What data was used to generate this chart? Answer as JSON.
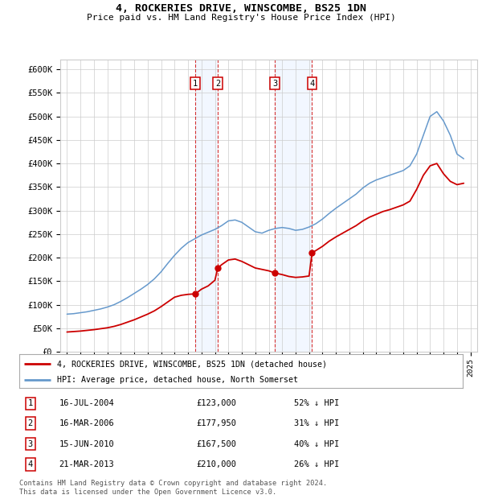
{
  "title": "4, ROCKERIES DRIVE, WINSCOMBE, BS25 1DN",
  "subtitle": "Price paid vs. HM Land Registry's House Price Index (HPI)",
  "ylim": [
    0,
    620000
  ],
  "yticks": [
    0,
    50000,
    100000,
    150000,
    200000,
    250000,
    300000,
    350000,
    400000,
    450000,
    500000,
    550000,
    600000
  ],
  "ytick_labels": [
    "£0",
    "£50K",
    "£100K",
    "£150K",
    "£200K",
    "£250K",
    "£300K",
    "£350K",
    "£400K",
    "£450K",
    "£500K",
    "£550K",
    "£600K"
  ],
  "xlim_start": 1994.5,
  "xlim_end": 2025.5,
  "transactions": [
    {
      "num": 1,
      "date": "16-JUL-2004",
      "year": 2004.54,
      "price": 123000,
      "pct": "52%",
      "label": "1"
    },
    {
      "num": 2,
      "date": "16-MAR-2006",
      "year": 2006.21,
      "price": 177950,
      "pct": "31%",
      "label": "2"
    },
    {
      "num": 3,
      "date": "15-JUN-2010",
      "year": 2010.46,
      "price": 167500,
      "pct": "40%",
      "label": "3"
    },
    {
      "num": 4,
      "date": "21-MAR-2013",
      "year": 2013.22,
      "price": 210000,
      "pct": "26%",
      "label": "4"
    }
  ],
  "legend_house": "4, ROCKERIES DRIVE, WINSCOMBE, BS25 1DN (detached house)",
  "legend_hpi": "HPI: Average price, detached house, North Somerset",
  "footer": "Contains HM Land Registry data © Crown copyright and database right 2024.\nThis data is licensed under the Open Government Licence v3.0.",
  "house_color": "#cc0000",
  "hpi_color": "#6699cc",
  "box_color": "#cc0000",
  "shade_color": "#cce0ff",
  "grid_color": "#cccccc",
  "bg_color": "#ffffff",
  "hpi_years": [
    1995,
    1995.5,
    1996,
    1996.5,
    1997,
    1997.5,
    1998,
    1998.5,
    1999,
    1999.5,
    2000,
    2000.5,
    2001,
    2001.5,
    2002,
    2002.5,
    2003,
    2003.5,
    2004,
    2004.5,
    2005,
    2005.5,
    2006,
    2006.5,
    2007,
    2007.5,
    2008,
    2008.5,
    2009,
    2009.5,
    2010,
    2010.5,
    2011,
    2011.5,
    2012,
    2012.5,
    2013,
    2013.5,
    2014,
    2014.5,
    2015,
    2015.5,
    2016,
    2016.5,
    2017,
    2017.5,
    2018,
    2018.5,
    2019,
    2019.5,
    2020,
    2020.5,
    2021,
    2021.5,
    2022,
    2022.5,
    2023,
    2023.5,
    2024,
    2024.5
  ],
  "hpi_values": [
    80000,
    81000,
    83000,
    85000,
    88000,
    91000,
    95000,
    100000,
    107000,
    115000,
    124000,
    133000,
    143000,
    155000,
    170000,
    188000,
    205000,
    220000,
    232000,
    240000,
    248000,
    254000,
    260000,
    268000,
    278000,
    280000,
    275000,
    265000,
    255000,
    252000,
    258000,
    262000,
    264000,
    262000,
    258000,
    260000,
    265000,
    272000,
    282000,
    294000,
    305000,
    315000,
    325000,
    335000,
    348000,
    358000,
    365000,
    370000,
    375000,
    380000,
    385000,
    395000,
    420000,
    460000,
    500000,
    510000,
    490000,
    460000,
    420000,
    410000
  ],
  "prop_years": [
    1995,
    1995.5,
    1996,
    1996.5,
    1997,
    1997.5,
    1998,
    1998.5,
    1999,
    1999.5,
    2000,
    2000.5,
    2001,
    2001.5,
    2002,
    2002.5,
    2003,
    2003.5,
    2004,
    2004.25,
    2004.54,
    2005,
    2005.5,
    2006,
    2006.21,
    2006.5,
    2007,
    2007.5,
    2008,
    2008.5,
    2009,
    2009.5,
    2010,
    2010.46,
    2010.5,
    2011,
    2011.5,
    2012,
    2012.5,
    2013,
    2013.22,
    2013.5,
    2014,
    2014.5,
    2015,
    2015.5,
    2016,
    2016.5,
    2017,
    2017.5,
    2018,
    2018.5,
    2019,
    2019.5,
    2020,
    2020.5,
    2021,
    2021.5,
    2022,
    2022.5,
    2023,
    2023.5,
    2024,
    2024.5
  ],
  "prop_values": [
    42000,
    43000,
    44000,
    45500,
    47000,
    49000,
    51000,
    54000,
    58000,
    63000,
    68000,
    74000,
    80000,
    87000,
    96000,
    106000,
    116000,
    120000,
    122000,
    122500,
    123000,
    133000,
    140000,
    152000,
    177950,
    185000,
    195000,
    197000,
    192000,
    185000,
    178000,
    175000,
    172000,
    167500,
    167000,
    164000,
    160000,
    158000,
    159000,
    161000,
    210000,
    215000,
    224000,
    235000,
    244000,
    252000,
    260000,
    268000,
    278000,
    286000,
    292000,
    298000,
    302000,
    307000,
    312000,
    320000,
    345000,
    375000,
    395000,
    400000,
    378000,
    362000,
    355000,
    358000
  ]
}
